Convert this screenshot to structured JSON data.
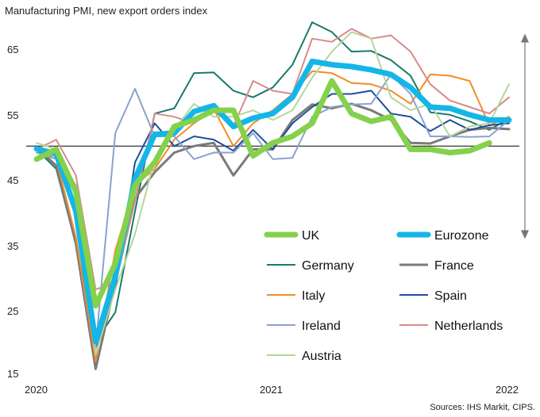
{
  "chart_data": {
    "type": "line",
    "title": "Manufacturing  PMI, new export orders index",
    "source": "Sources: IHS Markit, CIPS.",
    "ylim": [
      15,
      70
    ],
    "yticks": [
      "65",
      "55",
      "45",
      "35",
      "25",
      "15"
    ],
    "ytick_values": [
      65,
      55,
      45,
      35,
      25,
      15
    ],
    "xlim": [
      0,
      24
    ],
    "xticks": [
      "2020",
      "2021",
      "2022"
    ],
    "xtick_values": [
      0,
      12,
      24
    ],
    "reference_line": 50,
    "arrow_annotation": {
      "from": 67,
      "to": 36
    },
    "series": [
      {
        "name": "Germany",
        "color": "#1a7a6b",
        "width": 2,
        "values": [
          49.5,
          46.5,
          35,
          20,
          24.5,
          40,
          55,
          55.8,
          61.2,
          61.3,
          58.5,
          57.5,
          59,
          62.5,
          69,
          67.5,
          64.5,
          64.6,
          63.2,
          60.8,
          55.2,
          54.8,
          53.8,
          52.5,
          54.2
        ]
      },
      {
        "name": "France",
        "color": "#7a7a7a",
        "width": 3,
        "values": [
          49.8,
          47,
          35,
          15.8,
          29,
          42,
          46,
          49,
          50,
          50.5,
          45.5,
          49.5,
          49.5,
          54,
          56.4,
          55.8,
          56.5,
          55.5,
          54,
          50.5,
          50.4,
          51.5,
          52.5,
          52.8,
          52.6
        ]
      },
      {
        "name": "Italy",
        "color": "#f28c28",
        "width": 2,
        "values": [
          49.5,
          48,
          36,
          17,
          34,
          44,
          46.5,
          51,
          53.5,
          55.7,
          50,
          53.5,
          55.5,
          58,
          61.5,
          61.2,
          59.7,
          59.5,
          58.5,
          56.5,
          61,
          60.8,
          60,
          53.2,
          54.5
        ]
      },
      {
        "name": "Spain",
        "color": "#1f4e9a",
        "width": 2,
        "values": [
          50,
          48.5,
          41,
          19,
          28,
          47.5,
          53.5,
          50,
          51.5,
          51,
          49.3,
          52.5,
          49.5,
          53.5,
          56,
          58,
          58,
          58.5,
          55,
          54.5,
          52.3,
          54,
          52.5,
          53.2,
          53.5
        ]
      },
      {
        "name": "Ireland",
        "color": "#8aa2cf",
        "width": 2,
        "values": [
          49,
          48,
          44,
          19,
          52,
          58.8,
          51.5,
          51.5,
          48,
          49,
          49,
          52,
          48,
          48.2,
          54.5,
          56,
          56.4,
          56.5,
          61,
          58,
          51.5,
          51.5,
          51.4,
          51.5,
          54
        ]
      },
      {
        "name": "Netherlands",
        "color": "#d98a8a",
        "width": 2,
        "values": [
          49.5,
          51,
          45.5,
          28,
          29,
          41.5,
          55,
          54.5,
          53.5,
          55.5,
          53,
          60,
          58.5,
          58,
          66.5,
          66,
          68,
          66.5,
          67,
          64.5,
          59.5,
          57,
          56,
          55,
          57.5
        ]
      },
      {
        "name": "Austria",
        "color": "#b5d69a",
        "width": 2,
        "values": [
          50.5,
          49.5,
          43.5,
          18,
          28,
          36.5,
          48,
          52.5,
          56.5,
          54.5,
          54.5,
          55.5,
          54,
          55.5,
          60.5,
          64.5,
          67.5,
          66.5,
          57.5,
          55.5,
          56.5,
          51.5,
          53,
          53.5,
          59.5
        ]
      },
      {
        "name": "Eurozone",
        "color": "#14b6e8",
        "width": 7,
        "values": [
          49.6,
          48.8,
          40,
          20,
          30,
          45,
          51.8,
          52,
          55.3,
          56.2,
          53,
          54.3,
          55,
          57.5,
          63,
          62.5,
          62.2,
          61.7,
          61,
          59,
          56,
          55.8,
          54.8,
          54,
          54
        ]
      },
      {
        "name": "UK",
        "color": "#84d14b",
        "width": 7,
        "values": [
          48,
          49.5,
          43,
          25.5,
          32,
          44,
          47.5,
          53,
          54,
          55.5,
          55.5,
          48.5,
          50.5,
          51.5,
          53.5,
          60,
          55,
          53.8,
          54.5,
          49.5,
          49.5,
          49,
          49.3,
          50.5,
          null
        ]
      }
    ]
  },
  "legend": [
    {
      "name": "UK",
      "color": "#84d14b",
      "width": 7
    },
    {
      "name": "Eurozone",
      "color": "#14b6e8",
      "width": 7
    },
    {
      "name": "Germany",
      "color": "#1a7a6b",
      "width": 2
    },
    {
      "name": "France",
      "color": "#7a7a7a",
      "width": 3
    },
    {
      "name": "Italy",
      "color": "#f28c28",
      "width": 2
    },
    {
      "name": "Spain",
      "color": "#1f4e9a",
      "width": 2
    },
    {
      "name": "Ireland",
      "color": "#8aa2cf",
      "width": 2
    },
    {
      "name": "Netherlands",
      "color": "#d98a8a",
      "width": 2
    },
    {
      "name": "Austria",
      "color": "#b5d69a",
      "width": 2
    }
  ]
}
